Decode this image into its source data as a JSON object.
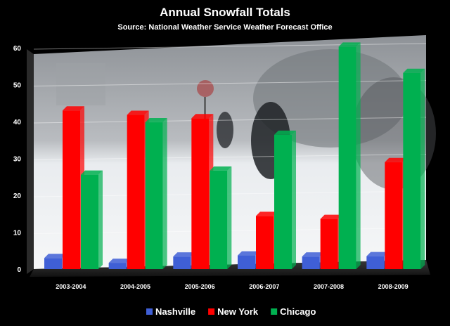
{
  "chart_data": {
    "type": "bar",
    "title": "Annual Snowfall Totals",
    "subtitle": "Source: National Weather Service Weather Forecast Office",
    "xlabel": "",
    "ylabel": "",
    "ylim": [
      0,
      60
    ],
    "yticks": [
      0,
      10,
      20,
      30,
      40,
      50,
      60
    ],
    "grid": true,
    "legend_position": "bottom",
    "categories": [
      "2003-2004",
      "2004-2005",
      "2005-2006",
      "2006-2007",
      "2007-2008",
      "2008-2009"
    ],
    "series": [
      {
        "name": "Nashville",
        "color": "#3f5fd6",
        "values": [
          3.0,
          1.7,
          3.4,
          3.7,
          3.4,
          3.5
        ]
      },
      {
        "name": "New York",
        "color": "#ff0000",
        "values": [
          43,
          41.8,
          40.9,
          14.4,
          13.6,
          29
        ]
      },
      {
        "name": "Chicago",
        "color": "#00b050",
        "values": [
          25.6,
          39.8,
          26.7,
          36.4,
          60.3,
          53.2
        ]
      }
    ],
    "background": "snowy street scene photograph"
  }
}
